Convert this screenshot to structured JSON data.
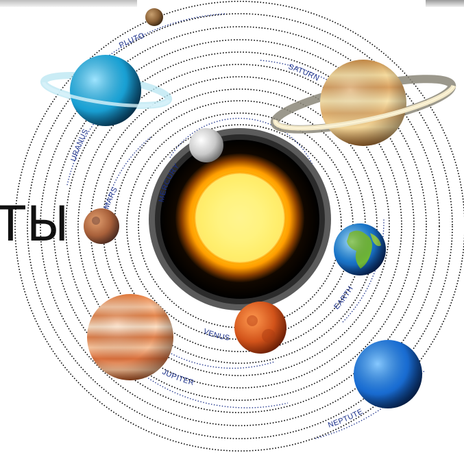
{
  "diagram": {
    "fragment_text": "ТЫ",
    "orbit_labels": {
      "mercury": "MERCURY",
      "venus": "VENUS",
      "earth": "EARTH",
      "mars": "MARS",
      "jupiter": "JUPITER",
      "saturn": "SATURN",
      "uranus": "URANUS",
      "neptune": "NEPTUTE",
      "pluto": "PLUTO"
    },
    "colors": {
      "orbit_dots": "#000000",
      "label_text": "#1a2f8a",
      "sun_core": "#ffe866",
      "sun_corona": "#ff8a00"
    }
  }
}
